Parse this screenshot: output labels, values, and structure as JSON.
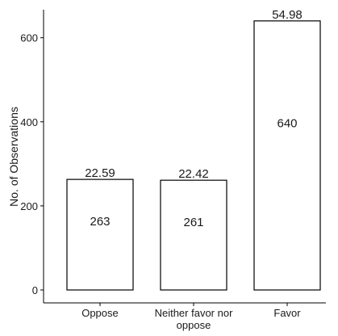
{
  "chart_data": {
    "type": "bar",
    "categories": [
      [
        "Oppose"
      ],
      [
        "Neither favor nor",
        "oppose"
      ],
      [
        "Favor"
      ]
    ],
    "values": [
      263,
      261,
      640
    ],
    "percent_labels": [
      "22.59",
      "22.42",
      "54.98"
    ],
    "xlabel": "",
    "ylabel": "No. of Observations",
    "ylim": [
      0,
      665
    ],
    "yticks": [
      0,
      200,
      400,
      600
    ],
    "grid": false,
    "bar_fill": "#ffffff",
    "bar_stroke": "#000000"
  }
}
